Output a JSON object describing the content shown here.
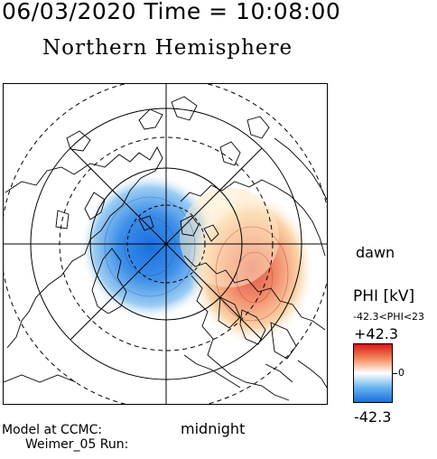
{
  "header": {
    "timestamp": "06/03/2020 Time = 10:08:00",
    "title": "Northern Hemisphere"
  },
  "map": {
    "orientation_labels": {
      "dawn": "dawn",
      "midnight": "midnight"
    },
    "projection": "polar stereographic, north pole centered",
    "features": [
      "coastlines",
      "latitude-circles",
      "meridians",
      "potential-contours"
    ]
  },
  "colorbar": {
    "label": "PHI [kV]",
    "range_text": "-42.3<PHI<23",
    "max_label": "+42.3",
    "zero_label": "0",
    "min_label": "-42.3",
    "colors": {
      "max": "#d7191c",
      "mid": "#ffffff",
      "min": "#1a6fe0"
    }
  },
  "footer": {
    "model_line": "Model at CCMC:",
    "run_line": "Weimer_05 Run:"
  }
}
